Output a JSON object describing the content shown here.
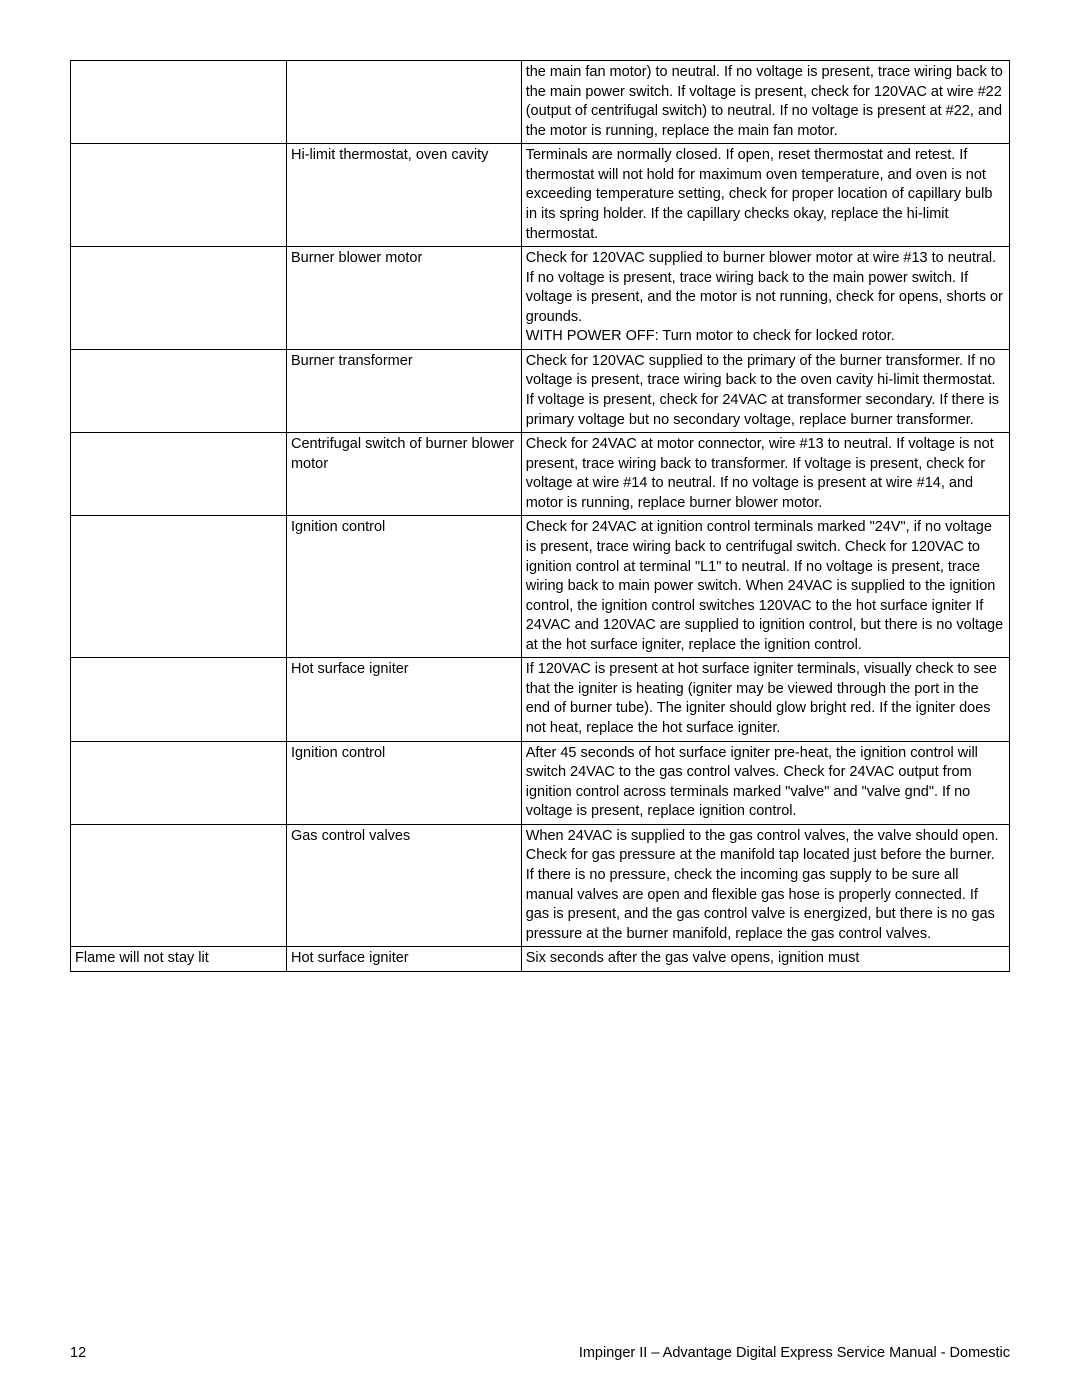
{
  "table": {
    "rows": [
      {
        "col1": "",
        "col2": "",
        "col3": "the main fan motor) to neutral. If no voltage is present, trace wiring back to the main power switch. If voltage is present, check for 120VAC at wire #22 (output of centrifugal switch) to neutral. If no voltage is present at #22, and the motor is running, replace the main fan motor."
      },
      {
        "col1": "",
        "col2": "Hi-limit thermostat, oven cavity",
        "col3": "Terminals are normally closed. If open, reset thermostat and retest. If thermostat will not hold for maximum oven temperature, and oven is not exceeding temperature setting, check for proper location of capillary bulb in its spring holder. If the capillary checks okay, replace the hi-limit thermostat."
      },
      {
        "col1": "",
        "col2": "Burner blower motor",
        "col3": "Check for 120VAC supplied to burner blower motor at wire #13 to neutral. If no voltage is present, trace wiring back to the main power switch. If voltage is present, and the motor is not running, check for opens, shorts or grounds.\nWITH POWER OFF: Turn motor to check for locked rotor."
      },
      {
        "col1": "",
        "col2": "Burner transformer",
        "col3": "Check for 120VAC supplied to the primary of the burner transformer. If no voltage is present, trace wiring back to the oven cavity hi-limit thermostat. If voltage is present, check for 24VAC at transformer secondary. If there is primary voltage but no secondary voltage, replace burner transformer."
      },
      {
        "col1": "",
        "col2": "Centrifugal switch of burner blower motor",
        "col3": "Check for 24VAC at motor connector, wire #13 to neutral. If voltage is not present, trace wiring back to transformer. If voltage is present, check for voltage at wire #14 to neutral. If no voltage is present at wire #14, and motor is running, replace burner blower motor."
      },
      {
        "col1": "",
        "col2": "Ignition control",
        "col3": "Check for 24VAC at ignition control terminals marked \"24V\", if no voltage is present, trace wiring back to centrifugal switch. Check for 120VAC to ignition control at terminal \"L1\" to neutral. If no voltage is present, trace wiring back to main power switch. When 24VAC is supplied to the ignition control, the ignition control switches 120VAC to the hot surface igniter If 24VAC and 120VAC are supplied to ignition control, but there is no voltage at the hot surface igniter, replace the ignition control."
      },
      {
        "col1": "",
        "col2": "Hot surface igniter",
        "col3": "If 120VAC is present at hot surface igniter terminals, visually check to see that the igniter is heating (igniter may be viewed through the port in the end of burner tube). The igniter should glow bright red. If the igniter does not heat, replace the hot surface igniter."
      },
      {
        "col1": "",
        "col2": "Ignition control",
        "col3": "After 45 seconds of hot surface igniter pre-heat, the ignition control will switch 24VAC to the gas control valves. Check for 24VAC output from ignition control across terminals marked \"valve\" and \"valve gnd\". If no voltage is present, replace ignition control."
      },
      {
        "col1": "",
        "col2": "Gas control valves",
        "col3": "When 24VAC is supplied to the gas control valves, the valve should open. Check for gas pressure at the manifold tap located just before the burner. If there is no pressure, check the incoming gas supply to be sure all manual valves are open and flexible gas hose is properly connected. If gas is present, and the gas control valve is energized, but there is no gas pressure at the burner manifold, replace the gas control valves."
      },
      {
        "col1": "Flame will not stay lit",
        "col2": "Hot surface igniter",
        "col3": "Six seconds after the gas valve opens, ignition must"
      }
    ]
  },
  "footer": {
    "page": "12",
    "title": "Impinger II – Advantage Digital Express Service Manual - Domestic"
  }
}
